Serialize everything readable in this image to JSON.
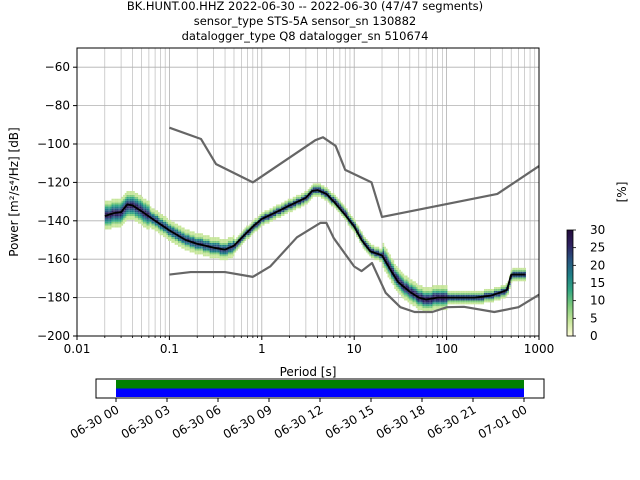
{
  "chart_data": {
    "type": "heatmap",
    "title_lines": [
      "BK.HUNT.00.HHZ   2022-06-30 -- 2022-06-30  (47/47 segments)",
      "sensor_type STS-5A sensor_sn 130882",
      "datalogger_type Q8 datalogger_sn 510674"
    ],
    "xlabel": "Period [s]",
    "ylabel": "Power [m²/s⁴/Hz] [dB]",
    "x_scale": "log",
    "xlim": [
      0.01,
      1000
    ],
    "ylim": [
      -200,
      -50
    ],
    "x_ticks": [
      {
        "value": 0.01,
        "label": "0.01"
      },
      {
        "value": 0.1,
        "label": "0.1"
      },
      {
        "value": 1,
        "label": "1"
      },
      {
        "value": 10,
        "label": "10"
      },
      {
        "value": 100,
        "label": "100"
      },
      {
        "value": 1000,
        "label": "1000"
      }
    ],
    "y_ticks": [
      {
        "value": -60,
        "label": "−60"
      },
      {
        "value": -80,
        "label": "−80"
      },
      {
        "value": -100,
        "label": "−100"
      },
      {
        "value": -120,
        "label": "−120"
      },
      {
        "value": -140,
        "label": "−140"
      },
      {
        "value": -160,
        "label": "−160"
      },
      {
        "value": -180,
        "label": "−180"
      },
      {
        "value": -200,
        "label": "−200"
      }
    ],
    "grid": true,
    "series": [
      {
        "role": "high_noise_model",
        "color": "#666666",
        "points": [
          [
            0.1,
            -91.5
          ],
          [
            0.22,
            -97.4
          ],
          [
            0.32,
            -110.5
          ],
          [
            0.8,
            -120
          ],
          [
            3.8,
            -98
          ],
          [
            4.6,
            -96.5
          ],
          [
            6.3,
            -101
          ],
          [
            8,
            -113.5
          ],
          [
            15.4,
            -120
          ],
          [
            20,
            -138
          ],
          [
            354,
            -126
          ],
          [
            1000,
            -111.5
          ]
        ]
      },
      {
        "role": "low_noise_model",
        "color": "#666666",
        "points": [
          [
            0.1,
            -168
          ],
          [
            0.17,
            -166.7
          ],
          [
            0.4,
            -166.7
          ],
          [
            0.8,
            -169.2
          ],
          [
            1.24,
            -163.7
          ],
          [
            2.4,
            -148.6
          ],
          [
            4.3,
            -141.1
          ],
          [
            5,
            -141.1
          ],
          [
            6,
            -149
          ],
          [
            10,
            -163.8
          ],
          [
            12,
            -166.2
          ],
          [
            15.6,
            -162
          ],
          [
            21.9,
            -177.5
          ],
          [
            31.6,
            -185
          ],
          [
            45,
            -187.5
          ],
          [
            70,
            -187.5
          ],
          [
            101,
            -185
          ],
          [
            154,
            -184.8
          ],
          [
            328,
            -187.5
          ],
          [
            600,
            -185
          ],
          [
            1000,
            -178.5
          ]
        ]
      },
      {
        "role": "mode",
        "color": "#000000",
        "points": [
          [
            0.02,
            -137.5
          ],
          [
            0.025,
            -136
          ],
          [
            0.03,
            -135.5
          ],
          [
            0.035,
            -131.5
          ],
          [
            0.04,
            -132
          ],
          [
            0.05,
            -135
          ],
          [
            0.07,
            -140
          ],
          [
            0.1,
            -145
          ],
          [
            0.15,
            -150
          ],
          [
            0.2,
            -152
          ],
          [
            0.3,
            -154
          ],
          [
            0.4,
            -155
          ],
          [
            0.5,
            -153
          ],
          [
            0.6,
            -149
          ],
          [
            0.8,
            -143
          ],
          [
            1,
            -139
          ],
          [
            1.5,
            -135
          ],
          [
            2,
            -132
          ],
          [
            3,
            -128
          ],
          [
            3.5,
            -124.5
          ],
          [
            4,
            -124
          ],
          [
            5,
            -126
          ],
          [
            6,
            -130
          ],
          [
            8,
            -137
          ],
          [
            10,
            -143
          ],
          [
            12,
            -150
          ],
          [
            15,
            -156
          ],
          [
            20,
            -158
          ],
          [
            25,
            -166
          ],
          [
            30,
            -172
          ],
          [
            40,
            -177
          ],
          [
            50,
            -180
          ],
          [
            60,
            -181
          ],
          [
            80,
            -180
          ],
          [
            100,
            -180
          ],
          [
            200,
            -180
          ],
          [
            300,
            -179
          ],
          [
            400,
            -177
          ],
          [
            450,
            -176
          ],
          [
            500,
            -168
          ],
          [
            700,
            -168
          ]
        ]
      }
    ],
    "colorbar": {
      "label": "[%]",
      "min": 0,
      "max": 30,
      "ticks": [
        {
          "value": 0,
          "label": "0"
        },
        {
          "value": 5,
          "label": "5"
        },
        {
          "value": 10,
          "label": "10"
        },
        {
          "value": 15,
          "label": "15"
        },
        {
          "value": 20,
          "label": "20"
        },
        {
          "value": 25,
          "label": "25"
        },
        {
          "value": 30,
          "label": "30"
        }
      ],
      "stops": [
        "#fffdd8",
        "#c6e69a",
        "#7fcb7c",
        "#34a783",
        "#1f7f86",
        "#28547f",
        "#2e2160",
        "#230b3c"
      ]
    },
    "coverage": {
      "start_label": "06-30 00",
      "end_label": "07-01 00",
      "tick_labels": [
        "06-30 00",
        "06-30 03",
        "06-30 06",
        "06-30 09",
        "06-30 12",
        "06-30 15",
        "06-30 18",
        "06-30 21",
        "07-01 00"
      ],
      "data_start_fraction": 0.0,
      "data_end_fraction": 1.0,
      "data_color": "#008000",
      "psd_color": "#0000ff"
    }
  }
}
